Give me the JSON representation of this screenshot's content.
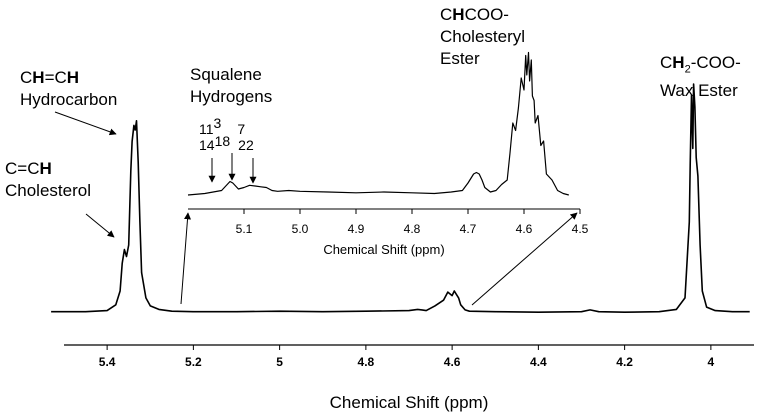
{
  "chart_data": [
    {
      "type": "line",
      "title": "",
      "xlabel": "Chemical Shift (ppm)",
      "ylabel": "",
      "xlim": [
        5.5,
        3.9
      ],
      "x_reversed": true,
      "ticks": [
        5.4,
        5.2,
        5,
        4.8,
        4.6,
        4.4,
        4.2,
        4
      ],
      "tick_labels": [
        "5.4",
        "5.2",
        "5",
        "4.8",
        "4.6",
        "4.4",
        "4.2",
        "4"
      ],
      "grid": false,
      "series": [
        {
          "x": [
            5.53,
            5.45,
            5.4,
            5.38,
            5.37,
            5.365,
            5.36,
            5.355,
            5.35,
            5.345,
            5.342,
            5.338,
            5.335,
            5.332,
            5.328,
            5.324,
            5.32,
            5.31,
            5.3,
            5.28,
            5.25,
            5.2,
            5.1,
            5.0,
            4.9,
            4.8,
            4.7,
            4.68,
            4.67,
            4.66,
            4.64,
            4.62,
            4.61,
            4.6,
            4.595,
            4.59,
            4.585,
            4.58,
            4.57,
            4.56,
            4.5,
            4.4,
            4.3,
            4.28,
            4.26,
            4.2,
            4.12,
            4.08,
            4.06,
            4.05,
            4.048,
            4.045,
            4.042,
            4.04,
            4.037,
            4.034,
            4.03,
            4.025,
            4.02,
            4.01,
            3.99,
            3.95,
            3.91
          ],
          "y": [
            0.01,
            0.01,
            0.015,
            0.04,
            0.1,
            0.22,
            0.28,
            0.25,
            0.3,
            0.62,
            0.75,
            0.82,
            0.8,
            0.84,
            0.66,
            0.4,
            0.18,
            0.07,
            0.035,
            0.02,
            0.012,
            0.01,
            0.01,
            0.012,
            0.01,
            0.012,
            0.015,
            0.02,
            0.018,
            0.015,
            0.035,
            0.06,
            0.095,
            0.08,
            0.1,
            0.085,
            0.07,
            0.04,
            0.018,
            0.012,
            0.01,
            0.008,
            0.01,
            0.018,
            0.01,
            0.008,
            0.01,
            0.02,
            0.07,
            0.4,
            0.65,
            0.95,
            0.72,
            1.0,
            0.9,
            0.68,
            0.6,
            0.3,
            0.1,
            0.03,
            0.015,
            0.01,
            0.01
          ]
        }
      ]
    },
    {
      "type": "line",
      "title": "",
      "xlabel": "Chemical Shift (ppm)",
      "ylabel": "",
      "xlim": [
        5.2,
        4.5
      ],
      "x_reversed": true,
      "ticks": [
        5.1,
        5.0,
        4.9,
        4.8,
        4.7,
        4.6,
        4.5
      ],
      "tick_labels": [
        "5.1",
        "5.0",
        "4.9",
        "4.8",
        "4.7",
        "4.6",
        "4.5"
      ],
      "grid": false,
      "series": [
        {
          "x": [
            5.2,
            5.17,
            5.14,
            5.13,
            5.125,
            5.12,
            5.115,
            5.11,
            5.1,
            5.09,
            5.08,
            5.07,
            5.06,
            5.05,
            5.04,
            5.02,
            5.0,
            4.95,
            4.9,
            4.85,
            4.8,
            4.76,
            4.73,
            4.71,
            4.7,
            4.69,
            4.685,
            4.68,
            4.675,
            4.67,
            4.66,
            4.65,
            4.64,
            4.63,
            4.625,
            4.62,
            4.615,
            4.61,
            4.605,
            4.6,
            4.597,
            4.595,
            4.592,
            4.59,
            4.587,
            4.585,
            4.582,
            4.58,
            4.575,
            4.57,
            4.565,
            4.56,
            4.55,
            4.54,
            4.53,
            4.52
          ],
          "y": [
            0.02,
            0.03,
            0.05,
            0.09,
            0.11,
            0.1,
            0.08,
            0.06,
            0.07,
            0.085,
            0.08,
            0.075,
            0.07,
            0.05,
            0.045,
            0.05,
            0.045,
            0.04,
            0.035,
            0.04,
            0.035,
            0.03,
            0.04,
            0.05,
            0.1,
            0.16,
            0.17,
            0.16,
            0.12,
            0.07,
            0.04,
            0.05,
            0.09,
            0.12,
            0.3,
            0.5,
            0.45,
            0.6,
            0.8,
            0.72,
            0.95,
            0.82,
            0.97,
            0.78,
            0.92,
            0.68,
            0.65,
            0.5,
            0.55,
            0.35,
            0.38,
            0.16,
            0.12,
            0.05,
            0.03,
            0.02
          ]
        }
      ]
    }
  ],
  "annotations": {
    "cholesterol": {
      "line1": "C=CH",
      "line2": "Cholesterol"
    },
    "hydrocarbon": {
      "line1": "CH=CH",
      "line2": "Hydrocarbon"
    },
    "squalene": {
      "line1": "Squalene",
      "line2": "Hydrogens",
      "nums_a": "11",
      "nums_b": "3",
      "nums_c": "7",
      "nums_d": "14",
      "nums_e": "18",
      "nums_f": "22"
    },
    "cholesteryl": {
      "line1": "CHCOO-",
      "line2": "Cholesteryl",
      "line3": "Ester"
    },
    "wax": {
      "line1": "CH",
      "line1_sub": "2",
      "line1_tail": "-COO-",
      "line2": "Wax Ester"
    }
  }
}
